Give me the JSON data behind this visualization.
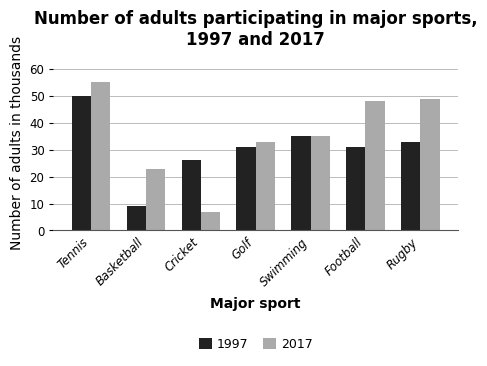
{
  "title": "Number of adults participating in major sports,\n1997 and 2017",
  "xlabel": "Major sport",
  "ylabel": "Number of adults in thousands",
  "categories": [
    "Tennis",
    "Basketball",
    "Cricket",
    "Golf",
    "Swimming",
    "Football",
    "Rugby"
  ],
  "values_1997": [
    50,
    9,
    26,
    31,
    35,
    31,
    33
  ],
  "values_2017": [
    55,
    23,
    7,
    33,
    35,
    48,
    49
  ],
  "color_1997": "#222222",
  "color_2017": "#aaaaaa",
  "legend_labels": [
    "1997",
    "2017"
  ],
  "ylim": [
    0,
    65
  ],
  "yticks": [
    0,
    10,
    20,
    30,
    40,
    50,
    60
  ],
  "bar_width": 0.35,
  "title_fontsize": 12,
  "axis_label_fontsize": 10,
  "tick_fontsize": 8.5,
  "legend_fontsize": 9,
  "background_color": "#ffffff"
}
